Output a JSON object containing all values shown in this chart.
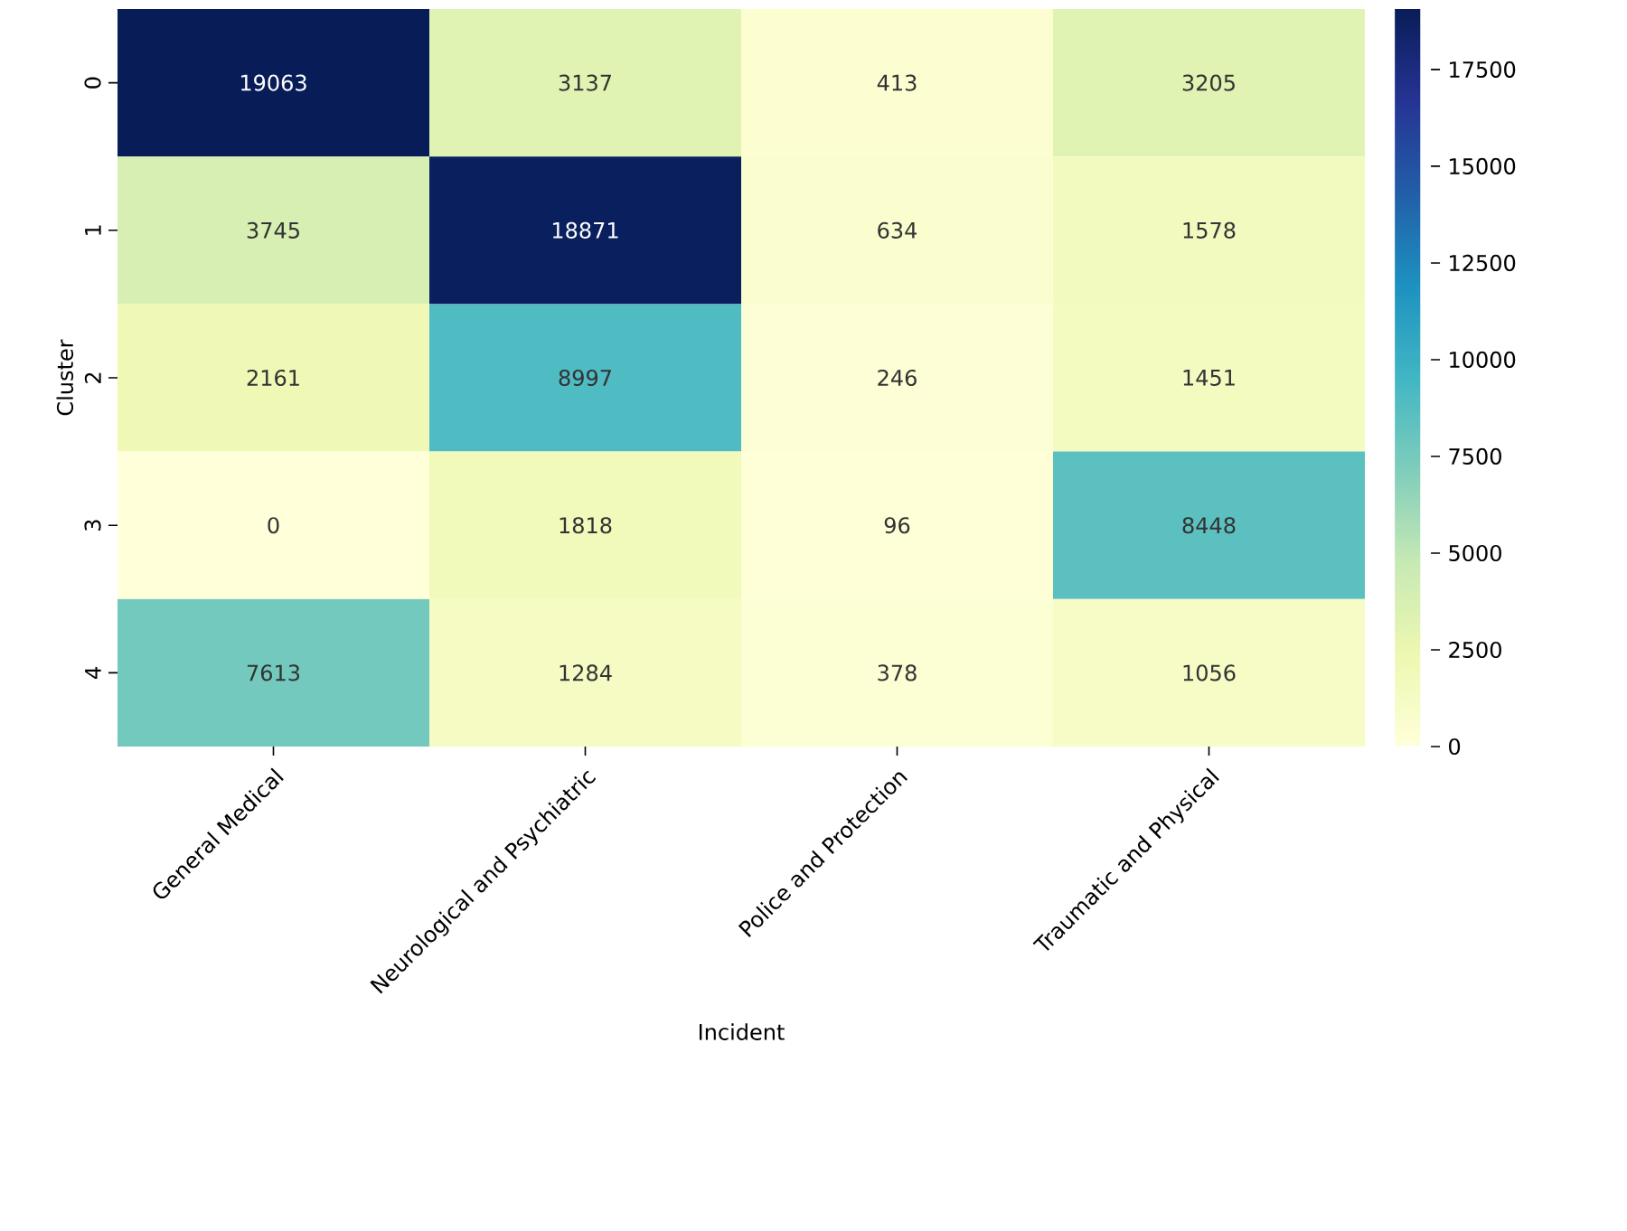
{
  "chart_data": {
    "type": "heatmap",
    "xlabel": "Incident",
    "ylabel": "Cluster",
    "categories": [
      "General Medical",
      "Neurological and Psychiatric",
      "Police and Protection",
      "Traumatic and Physical"
    ],
    "y_categories": [
      "0",
      "1",
      "2",
      "3",
      "4"
    ],
    "cells": [
      [
        19063,
        3137,
        413,
        3205
      ],
      [
        3745,
        18871,
        634,
        1578
      ],
      [
        2161,
        8997,
        246,
        1451
      ],
      [
        0,
        1818,
        96,
        8448
      ],
      [
        7613,
        1284,
        378,
        1056
      ]
    ],
    "data_labels": true,
    "clim": [
      0,
      19063
    ],
    "cticks": [
      0,
      2500,
      5000,
      7500,
      10000,
      12500,
      15000,
      17500
    ]
  }
}
